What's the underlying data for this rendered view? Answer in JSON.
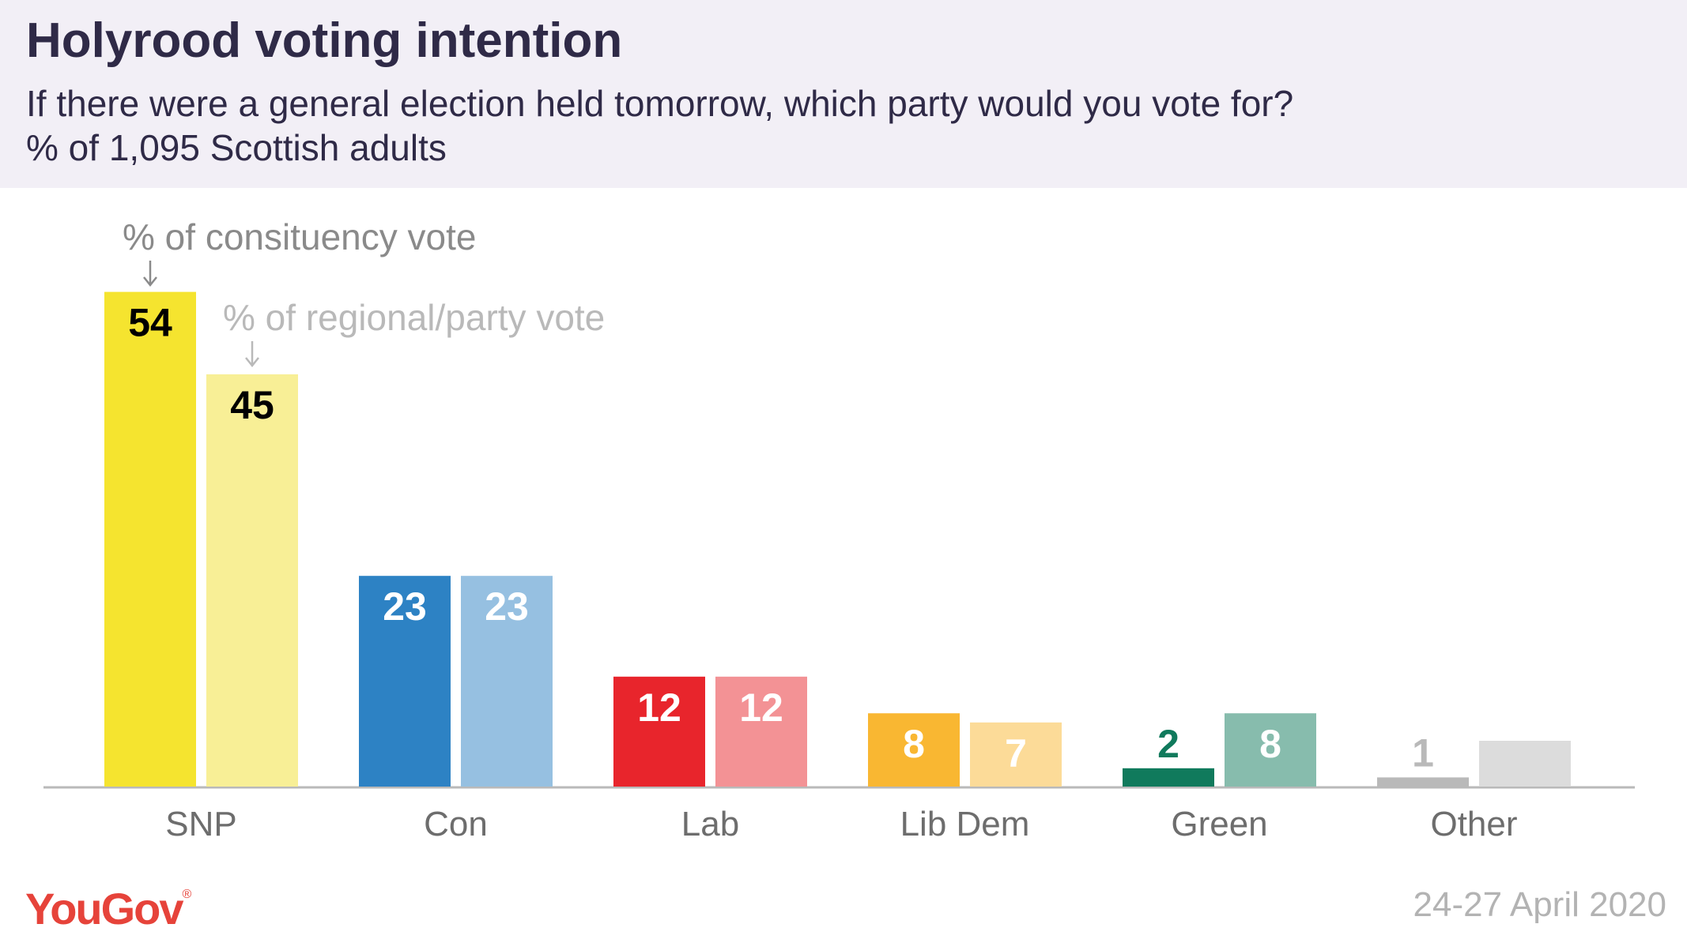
{
  "header": {
    "title": "Holyrood voting intention",
    "subtitle_line1": "If there were a general election held tomorrow, which party would you vote for?",
    "subtitle_line2": "% of 1,095 Scottish adults"
  },
  "footer": {
    "logo": "YouGov",
    "date": "24-27 April 2020"
  },
  "chart_data": {
    "type": "bar",
    "categories": [
      "SNP",
      "Con",
      "Lab",
      "Lib Dem",
      "Green",
      "Other"
    ],
    "series": [
      {
        "name": "% of consituency vote",
        "values": [
          54,
          23,
          12,
          8,
          2,
          1
        ],
        "colors": [
          "#f5e42f",
          "#2d82c4",
          "#e8252c",
          "#f9b732",
          "#107a5c",
          "#b9b9b9"
        ],
        "label_colors": [
          "#000000",
          "#ffffff",
          "#ffffff",
          "#ffffff",
          "#107a5c",
          "#b9b9b9"
        ]
      },
      {
        "name": "% of regional/party vote",
        "values": [
          45,
          23,
          12,
          7,
          8,
          5
        ],
        "colors": [
          "#f8ef96",
          "#96c0e1",
          "#f39295",
          "#fcdb98",
          "#87bcad",
          "#dcdcdc"
        ],
        "label_colors": [
          "#000000",
          "#ffffff",
          "#ffffff",
          "#ffffff",
          "#ffffff",
          "#ffffff"
        ]
      }
    ],
    "annotation_color": "#8a8a8a",
    "annotation_color_light": "#b9b9b9",
    "axis_color": "#b9b9b9",
    "category_label_color": "#6d6d6d",
    "legend": "annotations above SNP bars"
  }
}
